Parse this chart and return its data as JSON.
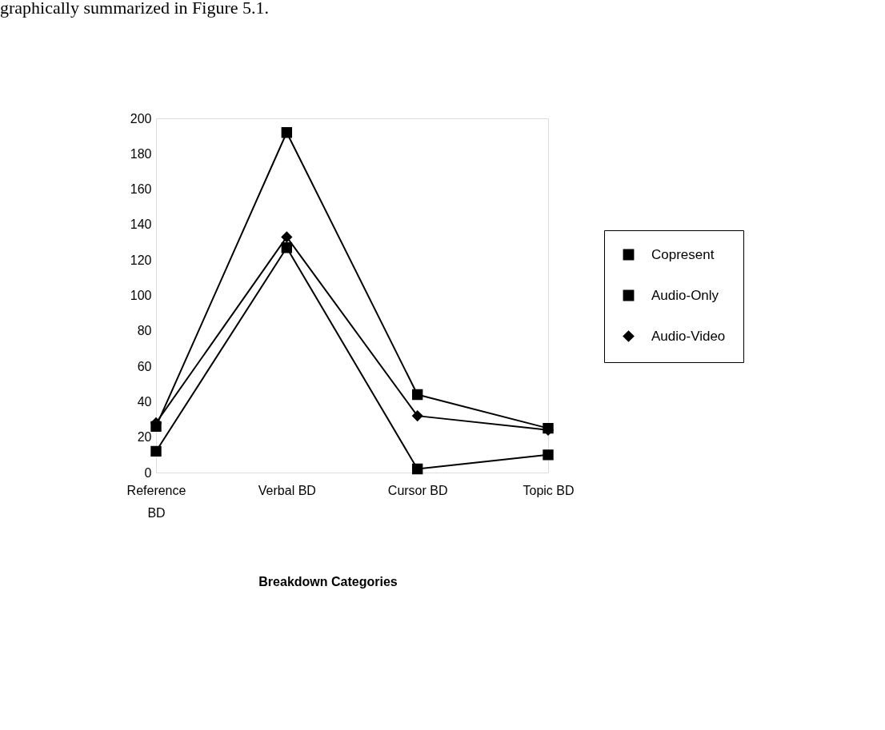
{
  "chart_data": {
    "type": "line",
    "annotations": [
      "graphically summarized in Figure 5.1."
    ],
    "xlabel": "Breakdown Categories",
    "categories": [
      "Reference BD",
      "Verbal BD",
      "Cursor BD",
      "Topic BD"
    ],
    "series": [
      {
        "name": "Copresent",
        "color": "#000000",
        "marker": "square",
        "values": [
          12,
          127,
          2,
          10
        ]
      },
      {
        "name": "Audio-Only",
        "color": "#000000",
        "marker": "square",
        "values": [
          26,
          192,
          44,
          25
        ]
      },
      {
        "name": "Audio-Video",
        "color": "#000000",
        "marker": "diamond",
        "values": [
          28,
          133,
          32,
          24
        ]
      }
    ],
    "ylim": [
      0,
      200
    ],
    "yticks": [
      0,
      20,
      40,
      60,
      80,
      100,
      120,
      140,
      160,
      180,
      200
    ],
    "grid": false,
    "legend": "right",
    "line_style": "solid"
  }
}
